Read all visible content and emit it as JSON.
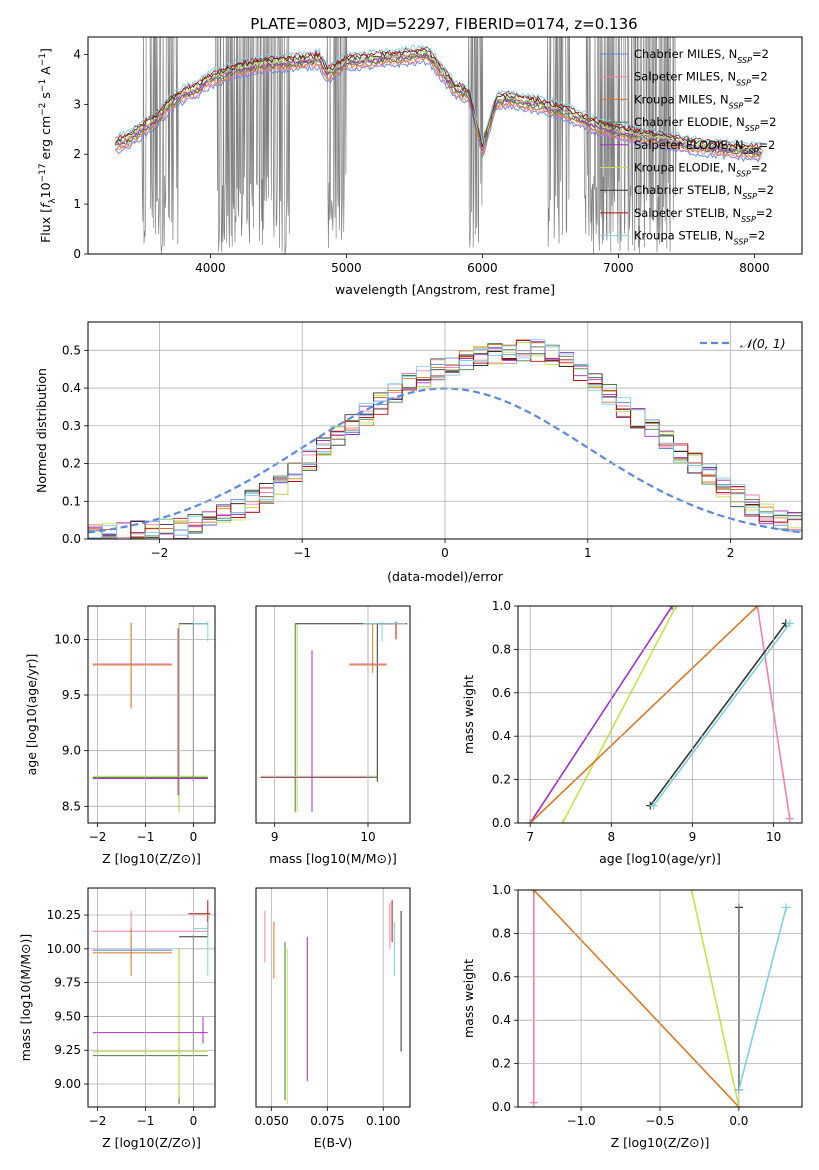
{
  "colors": {
    "chabrier_miles": "#5b8bd9",
    "salpeter_miles": "#f080b0",
    "kroupa_miles": "#d4782a",
    "chabrier_elodie": "#4a7a4a",
    "salpeter_elodie": "#a030c0",
    "kroupa_elodie": "#c8e050",
    "chabrier_stelib": "#333333",
    "salpeter_stelib": "#b01010",
    "kroupa_stelib": "#80d0e0",
    "data": "#808080",
    "normal": "#5b8bd9"
  },
  "chart_data": [
    {
      "type": "line",
      "title": "PLATE=0803, MJD=52297, FIBERID=0174, z=0.136",
      "xlabel": "wavelength [Angstrom, rest frame]",
      "ylabel": "Flux [f_λ 10^-17 erg cm^-2 s^-1 A^-1]",
      "xlim": [
        3100,
        8350
      ],
      "ylim": [
        0,
        4.35
      ],
      "xticks": [
        "4000",
        "5000",
        "6000",
        "7000",
        "8000"
      ],
      "yticks": [
        "0",
        "1",
        "2",
        "3",
        "4"
      ],
      "legend": [
        {
          "label": "Chabrier MILES, N",
          "sub": "SSP",
          "tail": "=2",
          "color_key": "chabrier_miles"
        },
        {
          "label": "Salpeter MILES, N",
          "sub": "SSP",
          "tail": "=2",
          "color_key": "salpeter_miles"
        },
        {
          "label": "Kroupa MILES, N",
          "sub": "SSP",
          "tail": "=2",
          "color_key": "kroupa_miles"
        },
        {
          "label": "Chabrier ELODIE, N",
          "sub": "SSP",
          "tail": "=2",
          "color_key": "chabrier_elodie"
        },
        {
          "label": "Salpeter ELODIE, N",
          "sub": "SSP",
          "tail": "=2",
          "color_key": "salpeter_elodie"
        },
        {
          "label": "Kroupa ELODIE, N",
          "sub": "SSP",
          "tail": "=2",
          "color_key": "kroupa_elodie"
        },
        {
          "label": "Chabrier STELIB, N",
          "sub": "SSP",
          "tail": "=2",
          "color_key": "chabrier_stelib"
        },
        {
          "label": "Salpeter STELIB, N",
          "sub": "SSP",
          "tail": "=2",
          "color_key": "salpeter_stelib"
        },
        {
          "label": "Kroupa STELIB, N",
          "sub": "SSP",
          "tail": "=2",
          "color_key": "kroupa_stelib"
        }
      ],
      "continuum": {
        "x": [
          3300,
          3400,
          3500,
          3600,
          3700,
          3800,
          3900,
          4000,
          4200,
          4400,
          4600,
          4800,
          4860,
          5000,
          5200,
          5400,
          5600,
          5800,
          5900,
          6000,
          6100,
          6200,
          6400,
          6600,
          6800,
          7000,
          7200,
          7400,
          7600,
          7800,
          8000,
          8060
        ],
        "y": [
          2.2,
          2.3,
          2.5,
          2.7,
          3.0,
          3.2,
          3.3,
          3.5,
          3.7,
          3.8,
          3.85,
          3.9,
          3.6,
          3.85,
          3.9,
          3.95,
          4.0,
          3.3,
          3.2,
          2.1,
          3.05,
          3.1,
          3.0,
          2.85,
          2.6,
          2.45,
          2.35,
          2.25,
          2.15,
          2.1,
          2.05,
          2.05
        ]
      },
      "noise_regions": [
        [
          3500,
          3760
        ],
        [
          4040,
          4580
        ],
        [
          4860,
          5000
        ],
        [
          5900,
          6000
        ],
        [
          6480,
          6640
        ],
        [
          6750,
          7420
        ]
      ]
    },
    {
      "type": "line",
      "xlabel": "(data-model)/error",
      "ylabel": "Normed distribution",
      "xlim": [
        -2.5,
        2.5
      ],
      "ylim": [
        0,
        0.575
      ],
      "xticks": [
        "−2",
        "−1",
        "0",
        "1",
        "2"
      ],
      "yticks": [
        "0.0",
        "0.1",
        "0.2",
        "0.3",
        "0.4",
        "0.5"
      ],
      "grid": true,
      "legend": [
        {
          "label": "𝒩(0, 1)",
          "color_key": "normal"
        }
      ],
      "bin_width": 0.1,
      "bin_start": -2.5,
      "base_hist": [
        0.012,
        0.015,
        0.017,
        0.02,
        0.022,
        0.025,
        0.03,
        0.036,
        0.05,
        0.065,
        0.08,
        0.1,
        0.12,
        0.145,
        0.175,
        0.21,
        0.24,
        0.27,
        0.3,
        0.33,
        0.36,
        0.385,
        0.41,
        0.43,
        0.45,
        0.46,
        0.47,
        0.48,
        0.49,
        0.495,
        0.5,
        0.5,
        0.49,
        0.47,
        0.44,
        0.41,
        0.38,
        0.35,
        0.32,
        0.29,
        0.26,
        0.23,
        0.2,
        0.17,
        0.14,
        0.115,
        0.09,
        0.07,
        0.055,
        0.045
      ]
    },
    {
      "type": "scatter",
      "xlabel": "Z [log10(Z/Z⊙)]",
      "ylabel": "age  [log10(age/yr)]",
      "xlim": [
        -2.2,
        0.45
      ],
      "ylim": [
        8.35,
        10.3
      ],
      "xticks": [
        "−2",
        "−1",
        "0"
      ],
      "yticks": [
        "8.5",
        "9.0",
        "9.5",
        "10.0"
      ],
      "grid": true
    },
    {
      "type": "scatter",
      "xlabel": "mass [log10(M/M⊙)]",
      "xlim": [
        8.8,
        10.45
      ],
      "ylim": [
        8.35,
        10.3
      ],
      "xticks": [
        "9",
        "10"
      ],
      "grid": true
    },
    {
      "type": "line",
      "xlabel": "age  [log10(age/yr)]",
      "ylabel": "mass weight",
      "xlim": [
        6.85,
        10.35
      ],
      "ylim": [
        0,
        1.0
      ],
      "xticks": [
        "7",
        "8",
        "9",
        "10"
      ],
      "yticks": [
        "0.0",
        "0.2",
        "0.4",
        "0.6",
        "0.8",
        "1.0"
      ],
      "grid": true,
      "segments": [
        {
          "color_key": "salpeter_elodie",
          "x": [
            7.0,
            8.75
          ],
          "y": [
            0.0,
            1.0
          ]
        },
        {
          "color_key": "kroupa_elodie",
          "x": [
            7.4,
            8.8
          ],
          "y": [
            0.0,
            1.0
          ]
        },
        {
          "color_key": "kroupa_miles",
          "x": [
            7.0,
            9.8
          ],
          "y": [
            0.0,
            1.0
          ]
        },
        {
          "color_key": "salpeter_miles",
          "x": [
            9.8,
            10.2
          ],
          "y": [
            1.0,
            0.02
          ]
        },
        {
          "color_key": "chabrier_stelib",
          "x": [
            8.48,
            10.15
          ],
          "y": [
            0.08,
            0.92
          ]
        },
        {
          "color_key": "kroupa_stelib",
          "x": [
            8.52,
            10.2
          ],
          "y": [
            0.08,
            0.92
          ]
        }
      ]
    },
    {
      "type": "scatter",
      "xlabel": "Z [log10(Z/Z⊙)]",
      "ylabel": "mass [log10(M/M⊙)]",
      "xlim": [
        -2.2,
        0.45
      ],
      "ylim": [
        8.83,
        10.45
      ],
      "xticks": [
        "−2",
        "−1",
        "0"
      ],
      "yticks": [
        "9.00",
        "9.25",
        "9.50",
        "9.75",
        "10.00",
        "10.25"
      ],
      "grid": true
    },
    {
      "type": "scatter",
      "xlabel": "E(B-V)",
      "xlim": [
        0.043,
        0.112
      ],
      "ylim": [
        8.83,
        10.45
      ],
      "xticks": [
        "0.050",
        "0.075",
        "0.100"
      ],
      "grid": true
    },
    {
      "type": "line",
      "xlabel": "Z [log10(Z/Z⊙)]",
      "ylabel": "mass weight",
      "xlim": [
        -1.4,
        0.4
      ],
      "ylim": [
        0,
        1.0
      ],
      "xticks": [
        "−1.0",
        "−0.5",
        "0.0"
      ],
      "yticks": [
        "0.0",
        "0.2",
        "0.4",
        "0.6",
        "0.8",
        "1.0"
      ],
      "grid": true,
      "segments": [
        {
          "color_key": "salpeter_miles",
          "x": [
            -1.3,
            -1.3
          ],
          "y": [
            0.02,
            1.0
          ]
        },
        {
          "color_key": "kroupa_miles",
          "x": [
            -1.3,
            0.0
          ],
          "y": [
            1.0,
            0.0
          ]
        },
        {
          "color_key": "kroupa_elodie",
          "x": [
            -0.3,
            0.0
          ],
          "y": [
            1.0,
            0.0
          ]
        },
        {
          "color_key": "chabrier_stelib",
          "x": [
            0.0,
            0.0
          ],
          "y": [
            0.08,
            0.92
          ]
        },
        {
          "color_key": "kroupa_stelib",
          "x": [
            0.0,
            0.3
          ],
          "y": [
            0.08,
            0.92
          ]
        }
      ]
    }
  ]
}
